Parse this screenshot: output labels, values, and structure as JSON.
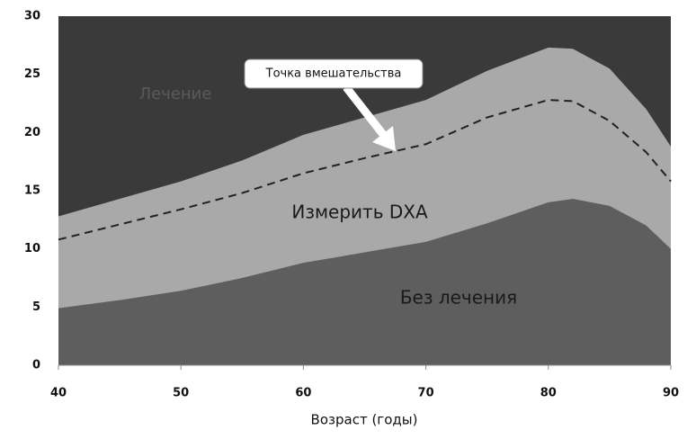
{
  "chart_data": {
    "type": "area",
    "x_label": "Возраст (годы)",
    "x": [
      40,
      45,
      50,
      55,
      60,
      65,
      70,
      75,
      80,
      82,
      85,
      88,
      90
    ],
    "series": [
      {
        "name": "Без лечения",
        "color": "#5e5e5e",
        "values": [
          4.9,
          5.6,
          6.4,
          7.5,
          8.8,
          9.7,
          10.6,
          12.2,
          14.0,
          14.3,
          13.7,
          12.0,
          10.0
        ]
      },
      {
        "name": "Измерить DXA",
        "color": "#a9a9a9",
        "values": [
          12.8,
          14.3,
          15.8,
          17.6,
          19.8,
          21.3,
          22.8,
          25.3,
          27.3,
          27.2,
          25.5,
          22.0,
          18.8
        ]
      }
    ],
    "threshold": {
      "color": "#222222",
      "values": [
        10.8,
        12.1,
        13.4,
        14.8,
        16.5,
        17.8,
        19.0,
        21.3,
        22.8,
        22.7,
        21.0,
        18.3,
        15.8
      ]
    },
    "background_region": {
      "label": "Лечение",
      "color": "#3a3a3a"
    },
    "annotation": "Точка вмешательства",
    "xlim": [
      40,
      90
    ],
    "xticks": [
      40,
      50,
      60,
      70,
      80,
      90
    ],
    "ylim": [
      0,
      30
    ],
    "yticks": [
      0,
      5,
      10,
      15,
      20,
      25,
      30
    ]
  }
}
